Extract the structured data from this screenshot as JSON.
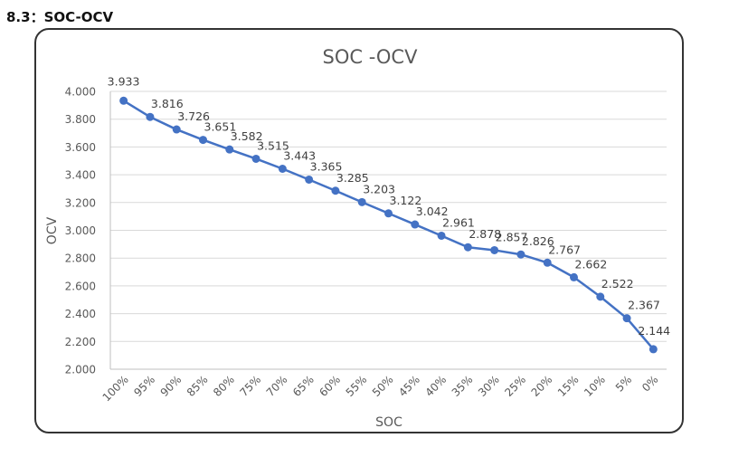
{
  "section_heading": "8.3：SOC-OCV",
  "chart_data": {
    "type": "line",
    "title": "SOC -OCV",
    "xlabel": "SOC",
    "ylabel": "OCV",
    "categories": [
      "100%",
      "95%",
      "90%",
      "85%",
      "80%",
      "75%",
      "70%",
      "65%",
      "60%",
      "55%",
      "50%",
      "45%",
      "40%",
      "35%",
      "30%",
      "25%",
      "20%",
      "15%",
      "10%",
      "5%",
      "0%"
    ],
    "series": [
      {
        "name": "OCV",
        "values": [
          3.933,
          3.816,
          3.726,
          3.651,
          3.582,
          3.515,
          3.443,
          3.365,
          3.285,
          3.203,
          3.122,
          3.042,
          2.961,
          2.878,
          2.857,
          2.826,
          2.767,
          2.662,
          2.522,
          2.367,
          2.144
        ],
        "labels": [
          "3.933",
          "3.816",
          "3.726",
          "3.651",
          "3.582",
          "3.515",
          "3.443",
          "3.365",
          "3.285",
          "3.203",
          "3.122",
          "3.042",
          "2.961",
          "2.878",
          "2.857",
          "2.826",
          "2.767",
          "2.662",
          "2.522",
          "2.367",
          "2.144"
        ],
        "color": "#4472C4"
      }
    ],
    "ylim": [
      2.0,
      4.0
    ],
    "yticks": [
      "2.000",
      "2.200",
      "2.400",
      "2.600",
      "2.800",
      "3.000",
      "3.200",
      "3.400",
      "3.600",
      "3.800",
      "4.000"
    ],
    "ytick_values": [
      2.0,
      2.2,
      2.4,
      2.6,
      2.8,
      3.0,
      3.2,
      3.4,
      3.6,
      3.8,
      4.0
    ],
    "grid": true,
    "legend": "none",
    "colors": {
      "grid": "#d9d9d9",
      "axis": "#bfbfbf",
      "text": "#595959"
    }
  }
}
